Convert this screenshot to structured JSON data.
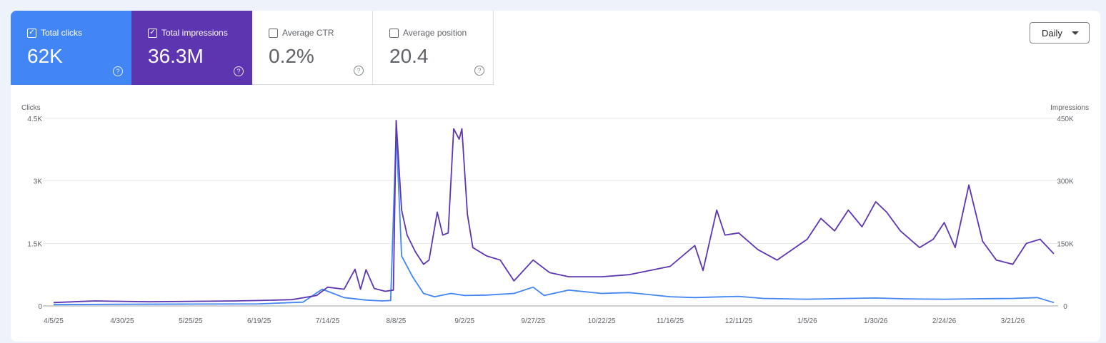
{
  "metrics": [
    {
      "label": "Total clicks",
      "value": "62K",
      "checked": true,
      "color": "#4285f4"
    },
    {
      "label": "Total impressions",
      "value": "36.3M",
      "checked": true,
      "color": "#5e35b1"
    },
    {
      "label": "Average CTR",
      "value": "0.2%",
      "checked": false
    },
    {
      "label": "Average position",
      "value": "20.4",
      "checked": false
    }
  ],
  "period_select": {
    "label": "Daily"
  },
  "icons": {
    "checkbox": "checkbox-icon",
    "help": "help-circle-icon",
    "dropdown": "caret-down-icon"
  },
  "chart_data": {
    "type": "line",
    "x": [
      "4/5/25",
      "4/30/25",
      "5/25/25",
      "6/19/25",
      "7/14/25",
      "8/8/25",
      "9/2/25",
      "9/27/25",
      "10/22/25",
      "11/16/25",
      "12/11/25",
      "1/5/26",
      "1/30/26",
      "2/24/26",
      "3/21/26",
      "4/5/26"
    ],
    "x_tick_labels": [
      "4/5/25",
      "4/30/25",
      "5/25/25",
      "6/19/25",
      "7/14/25",
      "8/8/25",
      "9/2/25",
      "9/27/25",
      "10/22/25",
      "11/16/25",
      "12/11/25",
      "1/5/26",
      "1/30/26",
      "2/24/26",
      "3/21/26"
    ],
    "ylabel_left": "Clicks",
    "ylabel_right": "Impressions",
    "yticks_left": [
      "0",
      "1.5K",
      "3K",
      "4.5K"
    ],
    "yticks_right": [
      "0",
      "150K",
      "300K",
      "450K"
    ],
    "ylim_left": [
      0,
      4500
    ],
    "ylim_right": [
      0,
      450000
    ],
    "grid": true,
    "series": [
      {
        "name": "Clicks",
        "axis": "left",
        "color": "#4285f4",
        "points": [
          [
            "4/5/25",
            30
          ],
          [
            "4/30/25",
            40
          ],
          [
            "5/25/25",
            45
          ],
          [
            "6/19/25",
            50
          ],
          [
            "7/5/25",
            90
          ],
          [
            "7/12/25",
            400
          ],
          [
            "7/14/25",
            350
          ],
          [
            "7/20/25",
            200
          ],
          [
            "7/28/25",
            140
          ],
          [
            "8/3/25",
            120
          ],
          [
            "8/6/25",
            130
          ],
          [
            "8/8/25",
            4200
          ],
          [
            "8/10/25",
            1200
          ],
          [
            "8/14/25",
            700
          ],
          [
            "8/18/25",
            300
          ],
          [
            "8/22/25",
            220
          ],
          [
            "8/28/25",
            300
          ],
          [
            "9/2/25",
            250
          ],
          [
            "9/10/25",
            260
          ],
          [
            "9/20/25",
            300
          ],
          [
            "9/27/25",
            450
          ],
          [
            "10/1/25",
            250
          ],
          [
            "10/10/25",
            380
          ],
          [
            "10/22/25",
            300
          ],
          [
            "11/1/25",
            320
          ],
          [
            "11/16/25",
            220
          ],
          [
            "11/25/25",
            200
          ],
          [
            "12/11/25",
            230
          ],
          [
            "12/20/25",
            180
          ],
          [
            "1/5/26",
            160
          ],
          [
            "1/20/26",
            180
          ],
          [
            "1/30/26",
            190
          ],
          [
            "2/10/26",
            170
          ],
          [
            "2/24/26",
            160
          ],
          [
            "3/5/26",
            170
          ],
          [
            "3/21/26",
            180
          ],
          [
            "3/30/26",
            200
          ],
          [
            "4/5/26",
            80
          ]
        ]
      },
      {
        "name": "Impressions",
        "axis": "right",
        "color": "#5e35b1",
        "points": [
          [
            "4/5/25",
            8000
          ],
          [
            "4/20/25",
            12000
          ],
          [
            "4/30/25",
            11000
          ],
          [
            "5/10/25",
            10000
          ],
          [
            "5/25/25",
            11000
          ],
          [
            "6/10/25",
            12000
          ],
          [
            "6/19/25",
            13000
          ],
          [
            "7/1/25",
            15000
          ],
          [
            "7/10/25",
            25000
          ],
          [
            "7/14/25",
            45000
          ],
          [
            "7/20/25",
            40000
          ],
          [
            "7/24/25",
            88000
          ],
          [
            "7/26/25",
            40000
          ],
          [
            "7/28/25",
            87000
          ],
          [
            "7/31/25",
            42000
          ],
          [
            "8/4/25",
            35000
          ],
          [
            "8/7/25",
            38000
          ],
          [
            "8/8/25",
            445000
          ],
          [
            "8/10/25",
            230000
          ],
          [
            "8/12/25",
            170000
          ],
          [
            "8/15/25",
            130000
          ],
          [
            "8/18/25",
            100000
          ],
          [
            "8/20/25",
            110000
          ],
          [
            "8/23/25",
            225000
          ],
          [
            "8/25/25",
            170000
          ],
          [
            "8/27/25",
            175000
          ],
          [
            "8/29/25",
            425000
          ],
          [
            "8/31/25",
            400000
          ],
          [
            "9/1/25",
            425000
          ],
          [
            "9/3/25",
            220000
          ],
          [
            "9/5/25",
            140000
          ],
          [
            "9/10/25",
            120000
          ],
          [
            "9/15/25",
            110000
          ],
          [
            "9/20/25",
            60000
          ],
          [
            "9/27/25",
            110000
          ],
          [
            "10/3/25",
            80000
          ],
          [
            "10/10/25",
            70000
          ],
          [
            "10/22/25",
            70000
          ],
          [
            "11/1/25",
            75000
          ],
          [
            "11/16/25",
            95000
          ],
          [
            "11/25/25",
            145000
          ],
          [
            "11/28/25",
            85000
          ],
          [
            "12/3/25",
            230000
          ],
          [
            "12/6/25",
            170000
          ],
          [
            "12/11/25",
            175000
          ],
          [
            "12/18/25",
            135000
          ],
          [
            "12/25/25",
            110000
          ],
          [
            "1/5/26",
            160000
          ],
          [
            "1/10/26",
            210000
          ],
          [
            "1/15/26",
            180000
          ],
          [
            "1/20/26",
            230000
          ],
          [
            "1/25/26",
            190000
          ],
          [
            "1/30/26",
            250000
          ],
          [
            "2/3/26",
            225000
          ],
          [
            "2/8/26",
            180000
          ],
          [
            "2/15/26",
            140000
          ],
          [
            "2/20/26",
            160000
          ],
          [
            "2/24/26",
            200000
          ],
          [
            "2/28/26",
            140000
          ],
          [
            "3/5/26",
            290000
          ],
          [
            "3/10/26",
            155000
          ],
          [
            "3/15/26",
            110000
          ],
          [
            "3/21/26",
            100000
          ],
          [
            "3/26/26",
            150000
          ],
          [
            "3/31/26",
            160000
          ],
          [
            "4/5/26",
            125000
          ]
        ]
      }
    ]
  }
}
